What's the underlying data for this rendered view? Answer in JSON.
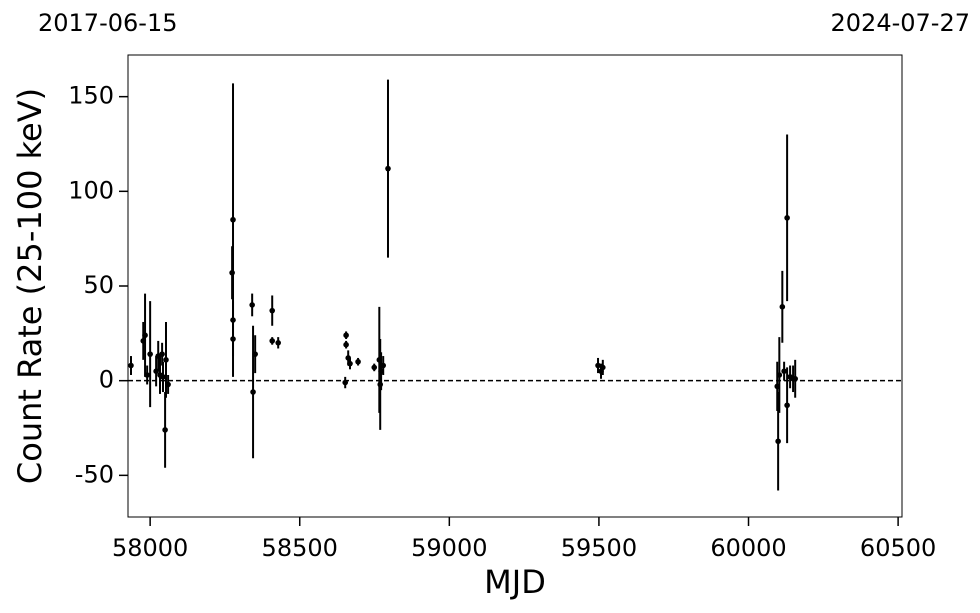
{
  "chart_data": {
    "type": "errorbar",
    "top_left_label": "2017-06-15",
    "top_right_label": "2024-07-27",
    "xlabel": "MJD",
    "ylabel": "Count Rate (25-100 keV)",
    "xlim": [
      57926,
      60513
    ],
    "ylim": [
      -72,
      172
    ],
    "xticks": [
      58000,
      58500,
      59000,
      59500,
      60000,
      60500
    ],
    "yticks": [
      -50,
      0,
      50,
      100,
      150
    ],
    "hline": 0,
    "series": [
      {
        "color": "#000000",
        "x": [
          57936,
          57977,
          57983,
          57990,
          58000,
          58020,
          58027,
          58033,
          58040,
          58043,
          58050,
          58053,
          58060,
          58274,
          58277,
          58277,
          58277,
          58341,
          58344,
          58351,
          58408,
          58408,
          58428,
          58655,
          58655,
          58652,
          58662,
          58668,
          58695,
          58749,
          58766,
          58769,
          58772,
          58779,
          58795,
          59497,
          59507,
          59513,
          60096,
          60099,
          60103,
          60113,
          60119,
          60129,
          60129,
          60139,
          60149,
          60156
        ],
        "values": [
          8,
          21,
          24,
          3,
          14,
          5,
          13,
          3,
          14,
          2,
          -26,
          11,
          -2,
          57,
          85,
          32,
          22,
          40,
          -6,
          14,
          37,
          21,
          20,
          24,
          19,
          -1,
          12,
          9,
          10,
          7,
          11,
          -2,
          5,
          8,
          112,
          8,
          5,
          7,
          -3,
          -32,
          3,
          39,
          5,
          86,
          -13,
          2,
          1,
          1
        ],
        "errors": [
          5,
          10,
          22,
          5,
          28,
          8,
          8,
          10,
          6,
          8,
          20,
          20,
          5,
          14,
          72,
          4,
          20,
          6,
          35,
          10,
          8,
          2,
          3,
          2,
          2,
          3,
          4,
          3,
          2,
          2,
          28,
          24,
          10,
          5,
          47,
          4,
          4,
          4,
          13,
          26,
          20,
          19,
          5,
          44,
          20,
          6,
          7,
          10
        ]
      }
    ]
  }
}
